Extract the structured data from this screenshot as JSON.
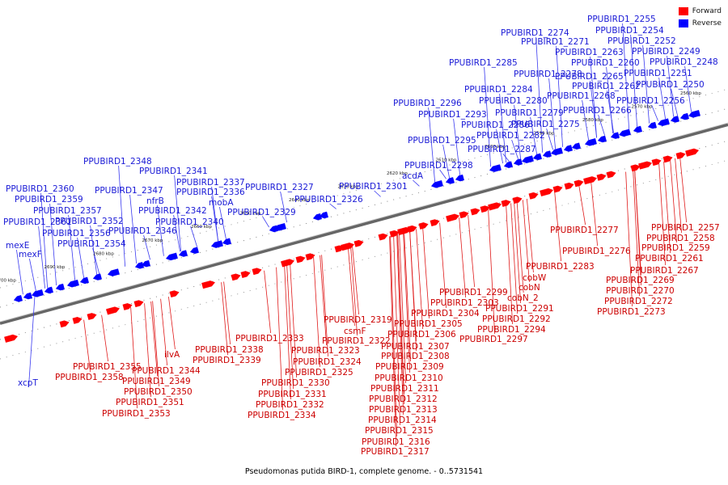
{
  "caption": "Pseudomonas putida BIRD-1, complete genome. - 0..5731541",
  "legend": [
    {
      "label": "Forward",
      "color": "#ff0000"
    },
    {
      "label": "Reverse",
      "color": "#0000ff"
    }
  ],
  "colors": {
    "forward": "#ff0000",
    "reverse": "#0000ff",
    "forward_label": "#cc0000",
    "reverse_label": "#1a1ad6",
    "backbone": "#666666"
  },
  "ticks": [
    "2560 kbp",
    "2570 kbp",
    "2580 kbp",
    "2590 kbp",
    "2600 kbp",
    "2610 kbp",
    "2620 kbp",
    "2630 kbp",
    "2640 kbp",
    "2650 kbp",
    "2660 kbp",
    "2670 kbp",
    "2680 kbp",
    "2690 kbp",
    "2700 kbp"
  ],
  "reverse_genes": [
    "PPUBIRD1_2255",
    "PPUBIRD1_2254",
    "PPUBIRD1_2252",
    "PPUBIRD1_2249",
    "PPUBIRD1_2248",
    "PPUBIRD1_2251",
    "PPUBIRD1_2250",
    "PPUBIRD1_2256",
    "PPUBIRD1_2274",
    "PPUBIRD1_2271",
    "PPUBIRD1_2263",
    "PPUBIRD1_2260",
    "PPUBIRD1_2265",
    "PPUBIRD1_2262",
    "PPUBIRD1_2268",
    "PPUBIRD1_2266",
    "PPUBIRD1_2285",
    "PPUBIRD1_2278",
    "PPUBIRD1_2284",
    "PPUBIRD1_2280",
    "PPUBIRD1_2279",
    "PPUBIRD1_2275",
    "PPUBIRD1_2286",
    "PPUBIRD1_2282",
    "PPUBIRD1_2287",
    "PPUBIRD1_2296",
    "PPUBIRD1_2293",
    "PPUBIRD1_2295",
    "PPUBIRD1_2298",
    "acdA",
    "PPUBIRD1_2301",
    "PPUBIRD1_2327",
    "PPUBIRD1_2326",
    "PPUBIRD1_2329",
    "PPUBIRD1_2348",
    "PPUBIRD1_2341",
    "PPUBIRD1_2337",
    "PPUBIRD1_2347",
    "PPUBIRD1_2336",
    "nfrB",
    "mobA",
    "PPUBIRD1_2342",
    "PPUBIRD1_2340",
    "PPUBIRD1_2346",
    "PPUBIRD1_2360",
    "PPUBIRD1_2359",
    "PPUBIRD1_2357",
    "PPUBIRD1_2361",
    "PPUBIRD1_2352",
    "PPUBIRD1_2356",
    "PPUBIRD1_2354",
    "mexE",
    "mexF",
    "xcpT"
  ],
  "forward_genes": [
    "PPUBIRD1_2257",
    "PPUBIRD1_2258",
    "PPUBIRD1_2259",
    "PPUBIRD1_2261",
    "PPUBIRD1_2267",
    "PPUBIRD1_2269",
    "PPUBIRD1_2270",
    "PPUBIRD1_2272",
    "PPUBIRD1_2273",
    "PPUBIRD1_2277",
    "PPUBIRD1_2276",
    "PPUBIRD1_2283",
    "cobW",
    "cobN",
    "cobN_2",
    "PPUBIRD1_2291",
    "PPUBIRD1_2292",
    "PPUBIRD1_2294",
    "PPUBIRD1_2297",
    "PPUBIRD1_2299",
    "PPUBIRD1_2303",
    "PPUBIRD1_2304",
    "PPUBIRD1_2305",
    "PPUBIRD1_2306",
    "PPUBIRD1_2307",
    "PPUBIRD1_2308",
    "PPUBIRD1_2309",
    "PPUBIRD1_2310",
    "PPUBIRD1_2311",
    "PPUBIRD1_2312",
    "PPUBIRD1_2313",
    "PPUBIRD1_2314",
    "PPUBIRD1_2315",
    "PPUBIRD1_2316",
    "PPUBIRD1_2317",
    "PPUBIRD1_2319",
    "csmF",
    "PPUBIRD1_2322",
    "PPUBIRD1_2323",
    "PPUBIRD1_2324",
    "PPUBIRD1_2325",
    "PPUBIRD1_2333",
    "PPUBIRD1_2330",
    "PPUBIRD1_2331",
    "PPUBIRD1_2332",
    "PPUBIRD1_2334",
    "PPUBIRD1_2338",
    "PPUBIRD1_2339",
    "ilvA",
    "PPUBIRD1_2344",
    "PPUBIRD1_2349",
    "PPUBIRD1_2350",
    "PPUBIRD1_2351",
    "PPUBIRD1_2353",
    "PPUBIRD1_2355",
    "PPUBIRD1_2358"
  ]
}
